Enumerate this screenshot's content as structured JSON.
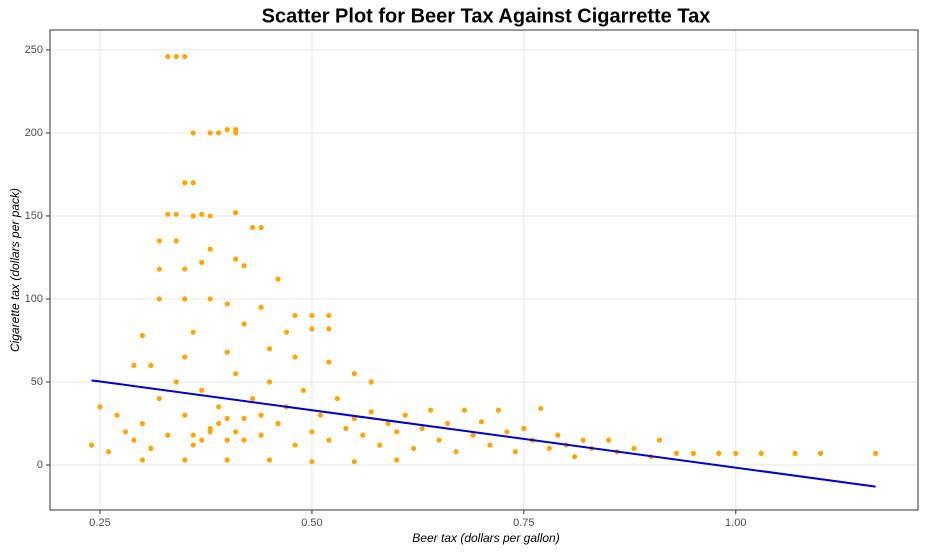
{
  "chart_data": {
    "type": "scatter",
    "title": "Scatter Plot for Beer Tax Against Cigarrette Tax",
    "x_label": "Beer tax (dollars per gallon)",
    "y_label": "Cigarette tax (dollars per pack)",
    "color": "#ffa500",
    "x": [
      0.33,
      0.34,
      0.35,
      0.36,
      0.38,
      0.39,
      0.4,
      0.41,
      0.41,
      0.35,
      0.36,
      0.33,
      0.34,
      0.36,
      0.37,
      0.38,
      0.41,
      0.43,
      0.44,
      0.32,
      0.34,
      0.38,
      0.41,
      0.42,
      0.32,
      0.35,
      0.37,
      0.46,
      0.32,
      0.35,
      0.38,
      0.4,
      0.44,
      0.48,
      0.5,
      0.52,
      0.3,
      0.36,
      0.42,
      0.47,
      0.5,
      0.52,
      0.29,
      0.31,
      0.35,
      0.4,
      0.45,
      0.48,
      0.52,
      0.55,
      0.57,
      0.25,
      0.24,
      0.26,
      0.27,
      0.28,
      0.29,
      0.3,
      0.31,
      0.32,
      0.33,
      0.34,
      0.35,
      0.36,
      0.37,
      0.38,
      0.39,
      0.4,
      0.41,
      0.42,
      0.43,
      0.44,
      0.45,
      0.46,
      0.47,
      0.48,
      0.49,
      0.5,
      0.51,
      0.52,
      0.53,
      0.54,
      0.55,
      0.56,
      0.57,
      0.58,
      0.59,
      0.6,
      0.61,
      0.62,
      0.63,
      0.64,
      0.65,
      0.66,
      0.67,
      0.68,
      0.69,
      0.7,
      0.71,
      0.72,
      0.73,
      0.74,
      0.75,
      0.76,
      0.77,
      0.78,
      0.79,
      0.8,
      0.81,
      0.82,
      0.83,
      0.85,
      0.86,
      0.88,
      0.9,
      0.91,
      0.93,
      0.95,
      0.98,
      1.0,
      1.03,
      1.07,
      1.1,
      1.165,
      0.3,
      0.35,
      0.4,
      0.45,
      0.5,
      0.55,
      0.6,
      0.38,
      0.39,
      0.4,
      0.36,
      0.42,
      0.44,
      0.37,
      0.41
    ],
    "y": [
      246,
      246,
      246,
      200,
      200,
      200,
      202,
      202,
      200,
      170,
      170,
      151,
      151,
      150,
      151,
      150,
      152,
      143,
      143,
      135,
      135,
      130,
      124,
      120,
      118,
      118,
      122,
      112,
      100,
      100,
      100,
      97,
      95,
      90,
      90,
      90,
      78,
      80,
      85,
      80,
      82,
      82,
      60,
      60,
      65,
      68,
      70,
      65,
      62,
      55,
      50,
      35,
      12,
      8,
      30,
      20,
      15,
      25,
      10,
      40,
      18,
      50,
      30,
      12,
      45,
      22,
      35,
      15,
      55,
      28,
      40,
      18,
      50,
      25,
      35,
      12,
      45,
      20,
      30,
      15,
      40,
      22,
      28,
      18,
      32,
      12,
      25,
      20,
      30,
      10,
      22,
      33,
      15,
      25,
      8,
      33,
      18,
      26,
      12,
      33,
      20,
      8,
      22,
      15,
      34,
      10,
      18,
      12,
      5,
      15,
      10,
      15,
      8,
      10,
      5,
      15,
      7,
      7,
      7,
      7,
      7,
      7,
      7,
      7,
      3,
      3,
      3,
      3,
      2,
      2,
      3,
      20,
      25,
      28,
      18,
      15,
      30,
      15,
      20
    ],
    "fit": {
      "x": [
        0.24,
        1.165
      ],
      "y": [
        51,
        -13
      ],
      "color": "#0000cc"
    },
    "xlim": [
      0.191,
      1.215
    ],
    "ylim": [
      -27.1,
      262
    ],
    "xticks": [
      0.25,
      {
        "value": 0.5,
        "label": "0.50"
      },
      0.75,
      {
        "value": 1,
        "label": "1.00"
      }
    ],
    "yticks": [
      0,
      50,
      100,
      150,
      200,
      250
    ],
    "grid": true
  }
}
